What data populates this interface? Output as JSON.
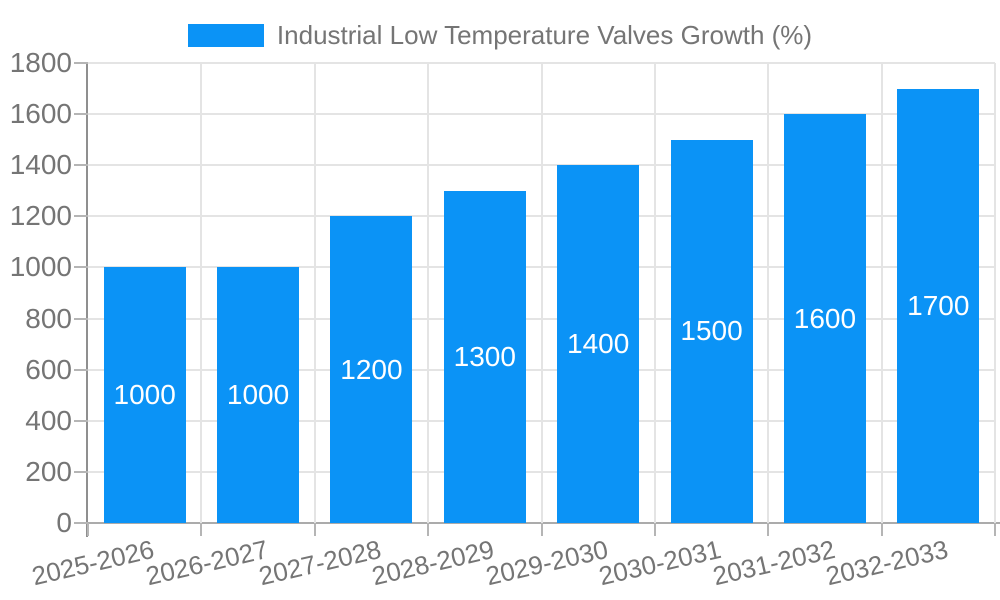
{
  "chart_data": {
    "type": "bar",
    "title": "Industrial Low Temperature Valves Growth (%)",
    "categories": [
      "2025-2026",
      "2026-2027",
      "2027-2028",
      "2028-2029",
      "2029-2030",
      "2030-2031",
      "2031-2032",
      "2032-2033"
    ],
    "series": [
      {
        "name": "Industrial Low Temperature Valves Growth (%)",
        "values": [
          1000,
          1000,
          1200,
          1300,
          1400,
          1500,
          1600,
          1700
        ]
      }
    ],
    "value_labels": [
      "1000",
      "1000",
      "1200",
      "1300",
      "1400",
      "1500",
      "1600",
      "1700"
    ],
    "xlabel": "",
    "ylabel": "",
    "ylim": [
      0,
      1800
    ],
    "ytick_step": 200,
    "ytick_labels": [
      "0",
      "200",
      "400",
      "600",
      "800",
      "1000",
      "1200",
      "1400",
      "1600",
      "1800"
    ],
    "grid": "horizontal and vertical gridlines on",
    "legend_position": "top-center",
    "bar_color": "#0b93f6",
    "value_label_color": "#ffffff",
    "axis_text_color": "#757575",
    "gridline_color": "#e4e4e4",
    "tick_color": "#b5b5b5"
  }
}
